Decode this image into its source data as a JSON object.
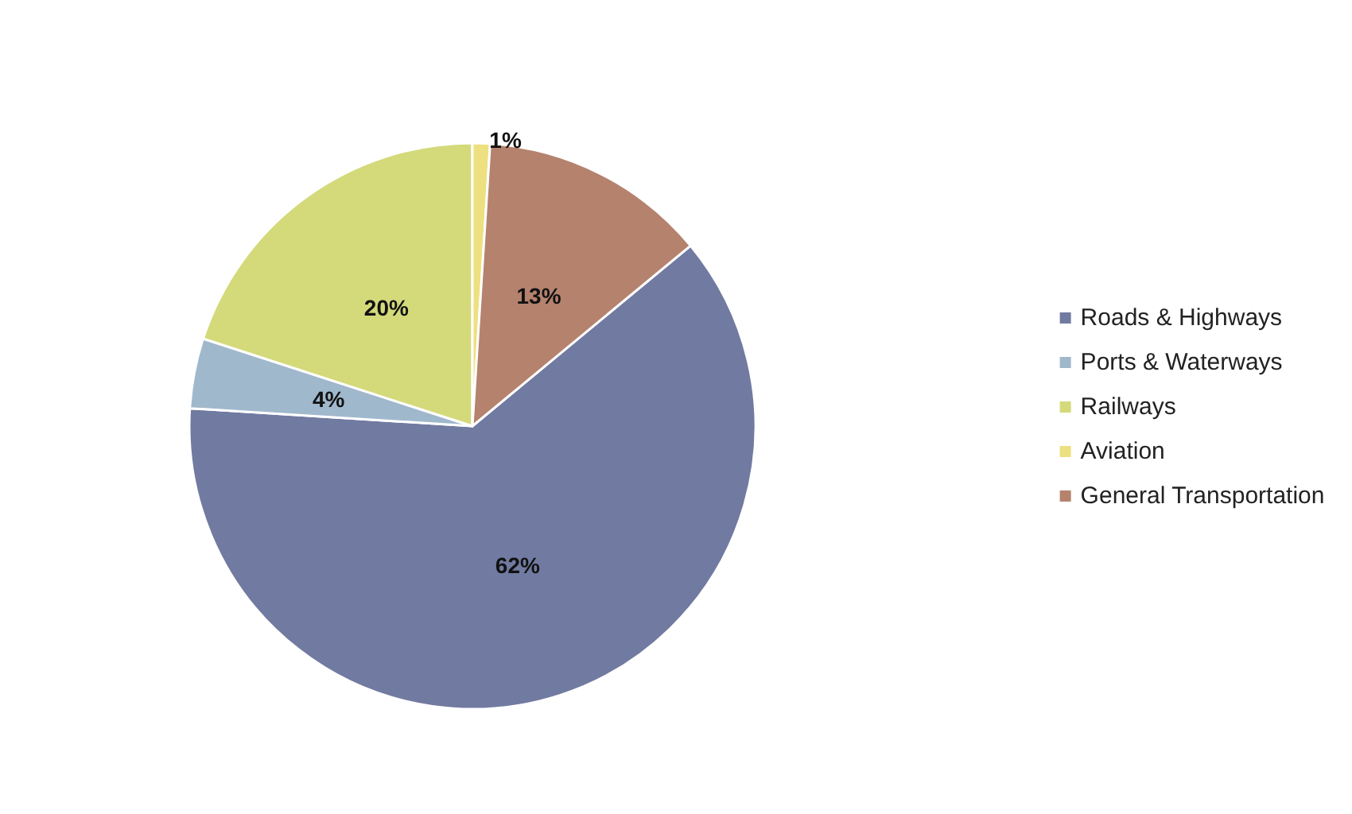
{
  "chart_data": {
    "type": "pie",
    "categories": [
      "Roads & Highways",
      "Ports & Waterways",
      "Railways",
      "Aviation",
      "General Transportation"
    ],
    "values": [
      62,
      4,
      20,
      1,
      13
    ],
    "colors": [
      "#717aa0",
      "#a0b8cc",
      "#d4d97a",
      "#ede080",
      "#b5826e"
    ],
    "value_labels": [
      "62%",
      "4%",
      "20%",
      "1%",
      "13%"
    ],
    "legend": "right"
  }
}
